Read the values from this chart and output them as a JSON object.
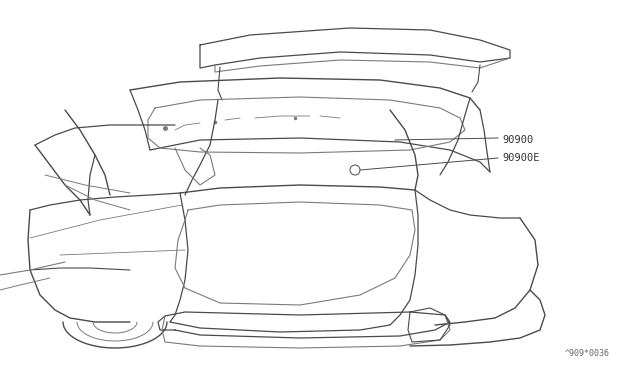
{
  "bg_color": "#ffffff",
  "line_color": "#4a4a4a",
  "thin_line_color": "#7a7a7a",
  "label_color": "#333333",
  "label_90900": "90900",
  "label_90900e": "90900E",
  "ref_code": "^909*0036",
  "fig_width": 6.4,
  "fig_height": 3.72,
  "dpi": 100
}
